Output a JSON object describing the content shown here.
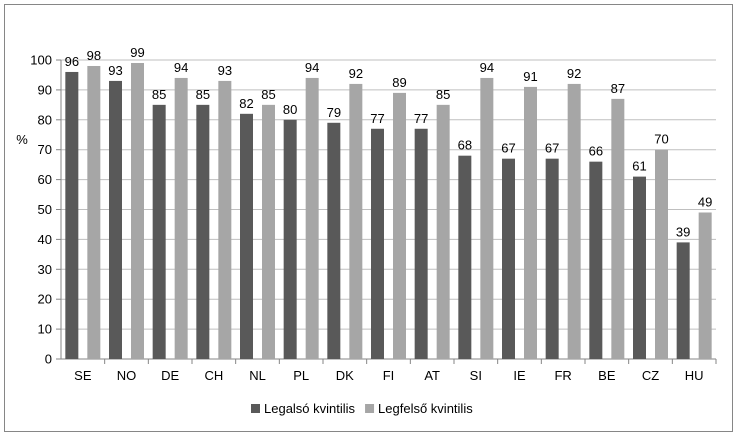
{
  "chart_data": {
    "type": "bar",
    "title": "",
    "xlabel": "",
    "ylabel": "%",
    "ylim": [
      0,
      100
    ],
    "ytick_step": 10,
    "grid": true,
    "legend_position": "bottom",
    "categories": [
      "SE",
      "NO",
      "DE",
      "CH",
      "NL",
      "PL",
      "DK",
      "FI",
      "AT",
      "SI",
      "IE",
      "FR",
      "BE",
      "CZ",
      "HU"
    ],
    "series": [
      {
        "name": "Legalsó kvintilis",
        "color": "#595959",
        "values": [
          96,
          93,
          85,
          85,
          82,
          80,
          79,
          77,
          77,
          68,
          67,
          67,
          66,
          61,
          39
        ]
      },
      {
        "name": "Legfelső kvintilis",
        "color": "#a6a6a6",
        "values": [
          98,
          99,
          94,
          93,
          85,
          94,
          92,
          89,
          85,
          94,
          91,
          92,
          87,
          70,
          49
        ]
      }
    ]
  }
}
